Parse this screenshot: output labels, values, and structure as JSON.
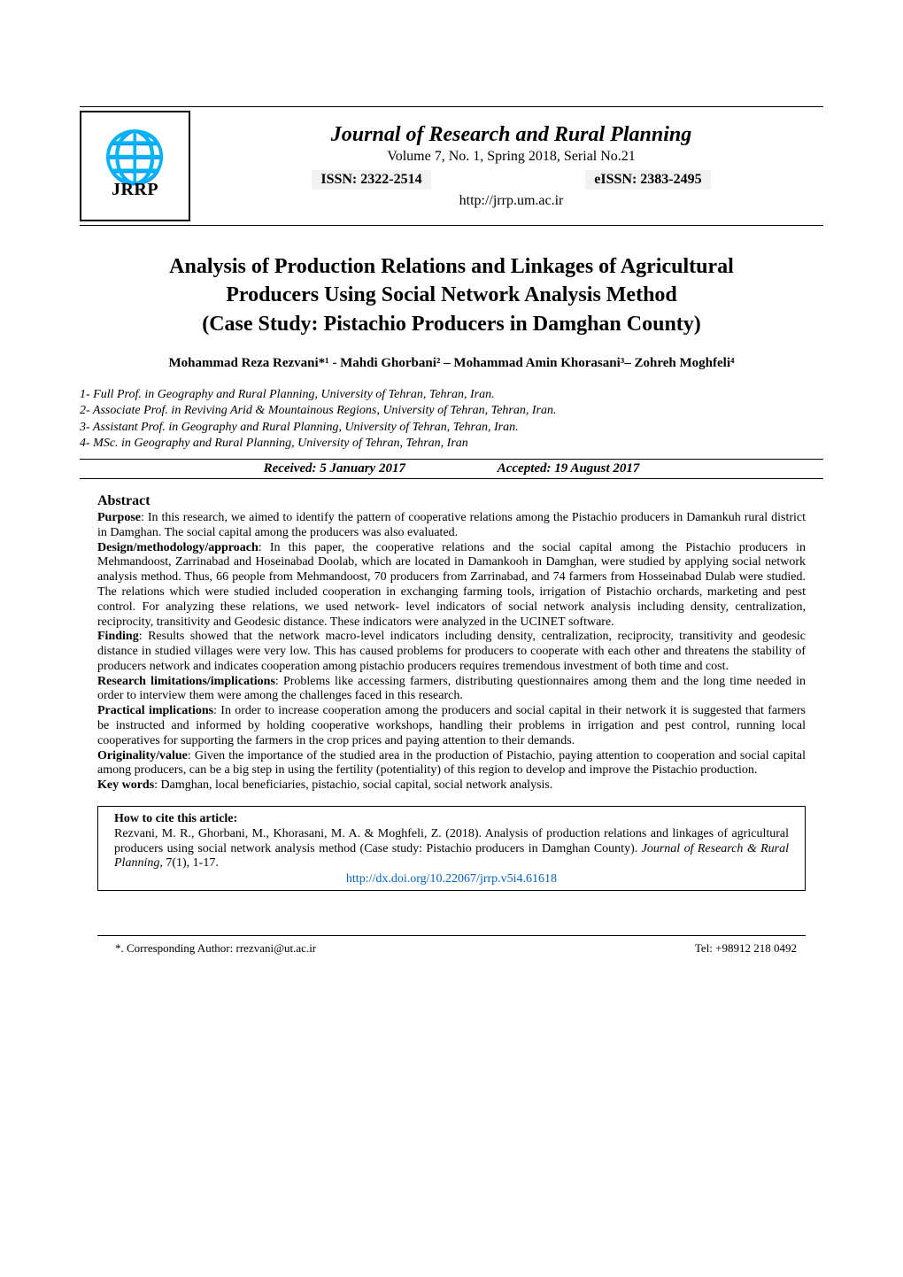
{
  "header": {
    "logo_text": "JRRP",
    "journal_title": "Journal of Research and Rural Planning",
    "volume_info": "Volume 7, No. 1, Spring 2018, Serial No.21",
    "issn_label": "ISSN: 2322-2514",
    "eissn_label": "eISSN: 2383-2495",
    "url": "http://jrrp.um.ac.ir"
  },
  "article": {
    "title_line1": "Analysis of Production Relations and Linkages of Agricultural",
    "title_line2": "Producers Using Social Network Analysis Method",
    "title_line3": "(Case Study: Pistachio Producers in Damghan County)",
    "authors": "Mohammad Reza Rezvani*¹ - Mahdi Ghorbani² – Mohammad Amin Khorasani³– Zohreh Moghfeli⁴",
    "affiliations": [
      "1- Full Prof. in Geography and Rural Planning, University of Tehran, Tehran, Iran.",
      "2- Associate Prof. in Reviving Arid & Mountainous Regions, University of Tehran, Tehran, Iran.",
      "3- Assistant Prof. in Geography and Rural Planning, University of Tehran, Tehran, Iran.",
      "4- MSc. in Geography and Rural Planning, University of Tehran, Tehran, Iran"
    ],
    "received": "Received: 5 January 2017",
    "accepted": "Accepted: 19 August 2017"
  },
  "abstract": {
    "heading": "Abstract",
    "purpose_label": "Purpose",
    "purpose_text": ": In this research, we aimed to identify the pattern of cooperative relations among the Pistachio producers in Damankuh rural district in Damghan. The social capital among the producers was also evaluated.",
    "design_label": "Design/methodology/approach",
    "design_text": ": In this paper, the cooperative relations and the social capital among the Pistachio producers in Mehmandoost, Zarrinabad and Hoseinabad Doolab, which are located in Damankooh in Damghan, were studied by applying social network analysis method. Thus, 66 people from Mehmandoost, 70 producers from Zarrinabad, and 74 farmers from Hosseinabad Dulab were studied. The relations which were studied included cooperation in exchanging farming tools, irrigation of Pistachio orchards, marketing and pest control. For analyzing these relations, we used network- level indicators of social network analysis including density, centralization, reciprocity, transitivity and Geodesic distance. These indicators were analyzed in the UCINET software.",
    "finding_label": "Finding",
    "finding_text": ": Results showed that the network macro-level indicators including density, centralization, reciprocity, transitivity and geodesic distance in studied villages were very low. This has caused problems for producers to cooperate with each other and threatens the stability of producers network and indicates cooperation among pistachio producers requires tremendous investment of both time and cost.",
    "limitations_label": "Research limitations/implications",
    "limitations_text": ": Problems like accessing farmers, distributing questionnaires among them and the long time needed in order to interview them were among the challenges faced in this research.",
    "practical_label": "Practical implications",
    "practical_text": ": In order to increase cooperation among the producers and social capital in their network it is suggested that farmers be instructed and informed by holding cooperative workshops, handling their problems in irrigation and pest control, running local cooperatives for supporting the farmers in the crop prices and paying attention to their demands.",
    "originality_label": "Originality/value",
    "originality_text": ": Given the importance of the studied area in the production of Pistachio, paying attention to cooperation and social capital among producers, can be a big step in using the fertility (potentiality) of this region to develop and improve the Pistachio production.",
    "keywords_label": "Key words",
    "keywords_text": ": Damghan, local beneficiaries, pistachio, social capital, social network analysis."
  },
  "citation": {
    "heading": "How to cite this article:",
    "text_part1": "Rezvani, M. R., Ghorbani, M., Khorasani, M. A. & Moghfeli, Z. (2018). Analysis of production relations and linkages of agricultural producers using social network analysis method (Case study: Pistachio producers in Damghan County). ",
    "text_italic": "Journal of Research & Rural Planning,",
    "text_part2": " 7(1), 1-17.",
    "doi_link": "http://dx.doi.org/10.22067/jrrp.v5i4.61618"
  },
  "footer": {
    "corresponding": "*. Corresponding Author: rrezvani@ut.ac.ir",
    "tel": "Tel: +98912 218 0492"
  }
}
